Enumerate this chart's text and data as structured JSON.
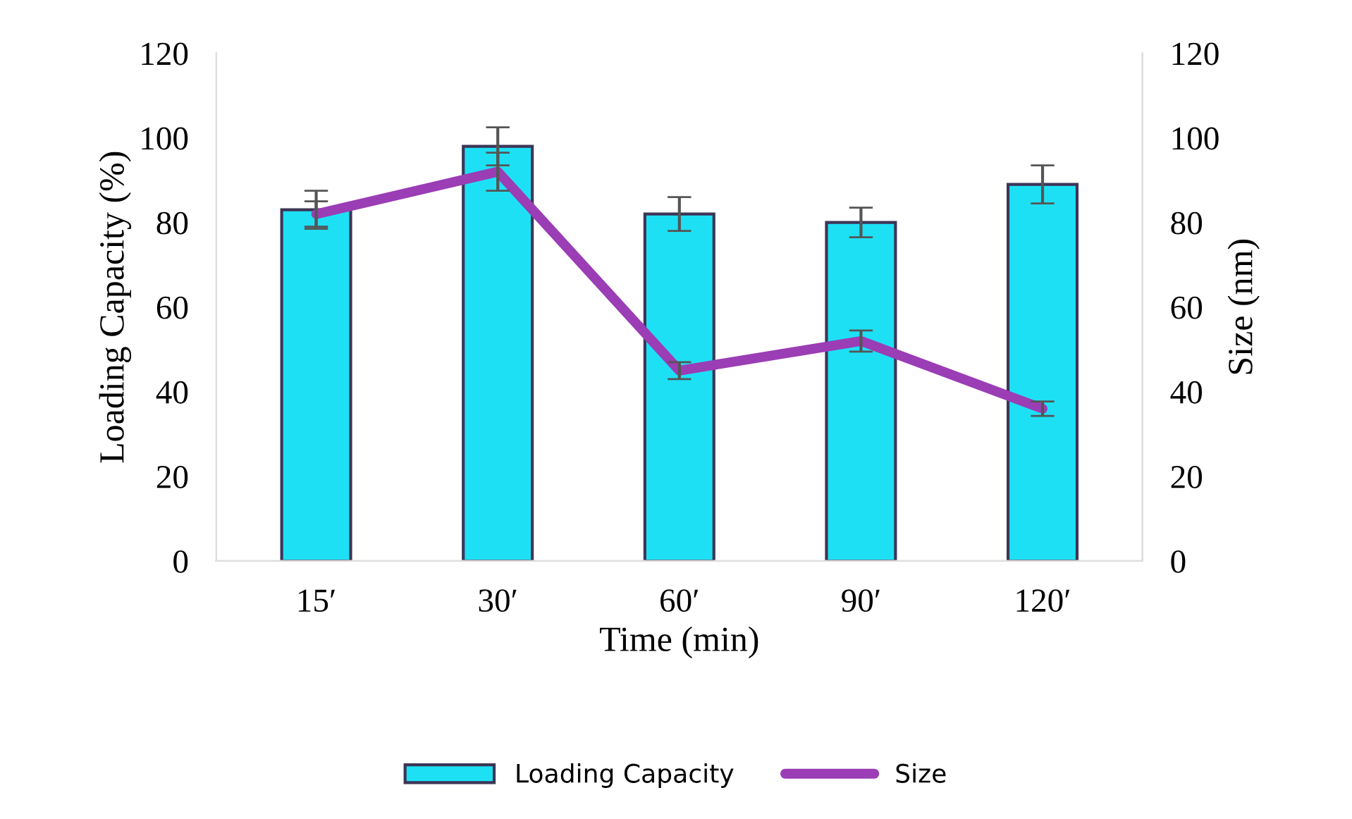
{
  "chart_data": {
    "type": "bar",
    "xlabel": "Time (min)",
    "ylabel": "Loading Capacity (%)",
    "y2label": "Size (nm)",
    "categories": [
      "15′",
      "30′",
      "60′",
      "90′",
      "120′"
    ],
    "series": [
      {
        "name": "Loading Capacity",
        "color": "#1ee0f5",
        "values": [
          83,
          98,
          82,
          80,
          89
        ],
        "errors": [
          4.5,
          4.5,
          4,
          3.5,
          4.5
        ]
      },
      {
        "name": "Size",
        "type": "line",
        "axis": "y2",
        "color": "#9b3db5",
        "values": [
          82,
          92,
          45,
          52,
          36
        ],
        "errors": [
          3,
          4.5,
          2,
          2.5,
          1.7
        ]
      }
    ],
    "ylim": [
      0,
      120
    ],
    "yticks": [
      0,
      20,
      40,
      60,
      80,
      100,
      120
    ],
    "y2lim": [
      0,
      120
    ],
    "y2ticks": [
      0,
      20,
      40,
      60,
      80,
      100,
      120
    ],
    "grid": false,
    "legend": "bottom",
    "marker": "none",
    "line_style": "solid"
  }
}
